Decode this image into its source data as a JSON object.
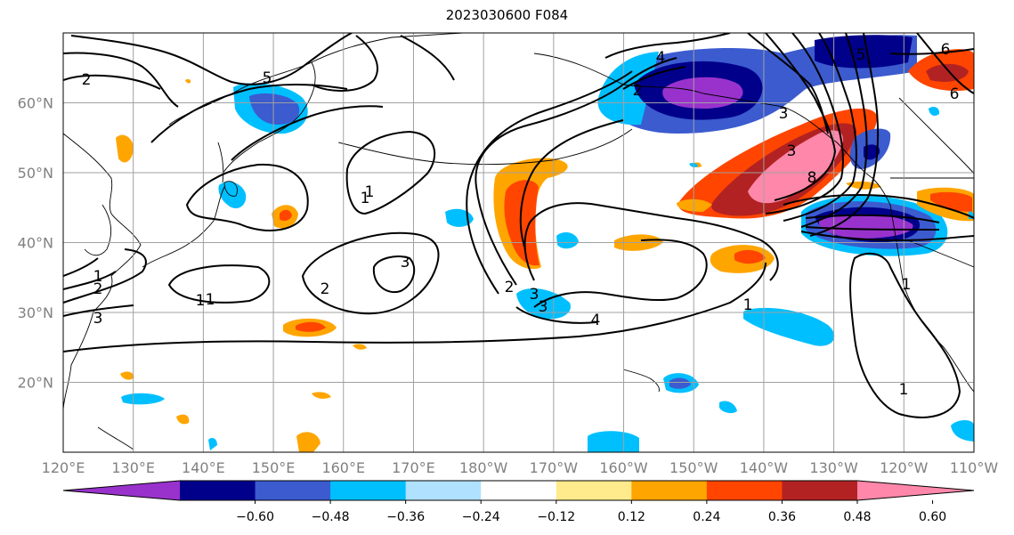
{
  "title": "2023030600 F084",
  "lat_labels": [
    "60°N",
    "50°N",
    "40°N",
    "30°N",
    "20°N"
  ],
  "lat_values": [
    60,
    50,
    40,
    30,
    20
  ],
  "lon_labels": [
    "120°E",
    "130°E",
    "140°E",
    "150°E",
    "160°E",
    "170°E",
    "180°W",
    "170°W",
    "160°W",
    "150°W",
    "140°W",
    "130°W",
    "120°W",
    "110°W"
  ],
  "colorbar": {
    "ticks": [
      "-0.60",
      "-0.48",
      "-0.36",
      "-0.24",
      "-0.12",
      "0.12",
      "0.24",
      "0.36",
      "0.48",
      "0.60"
    ],
    "colors": [
      "#9932cc",
      "#00008b",
      "#3b5bcf",
      "#00bfff",
      "#b0e2ff",
      "#ffffff",
      "#ffeb8c",
      "#ffa500",
      "#ff4500",
      "#b22222",
      "#ff88aa"
    ]
  },
  "contour_labels": [
    "1",
    "2",
    "3",
    "1",
    "2",
    "3",
    "1",
    "2",
    "5",
    "3",
    "1",
    "3",
    "2",
    "3",
    "4",
    "1",
    "2",
    "4",
    "5",
    "6",
    "3",
    "8",
    "6",
    "1",
    "1",
    "1"
  ],
  "colors": {
    "grid": "#a0a0a0",
    "coast": "#000000",
    "contour": "#000000"
  }
}
